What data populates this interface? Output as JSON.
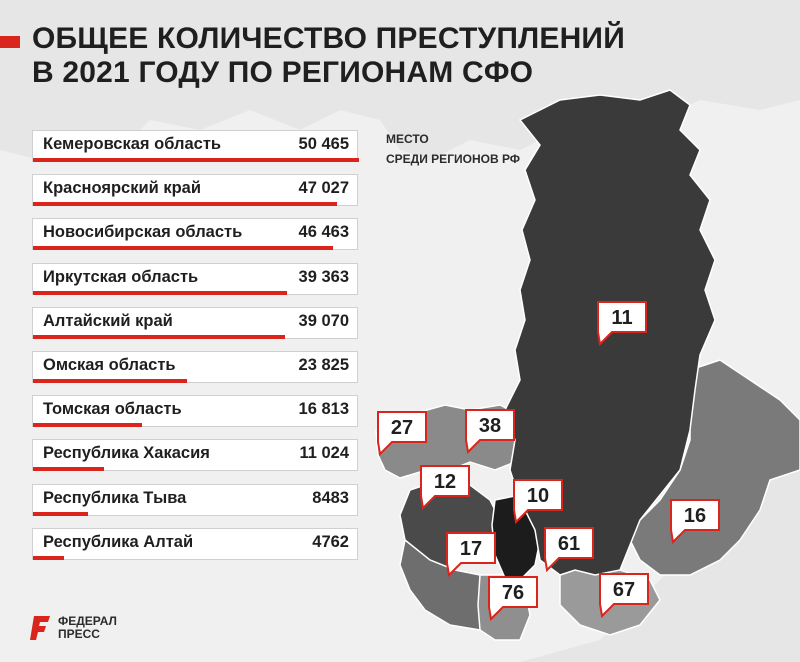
{
  "title_lines": [
    "ОБЩЕЕ КОЛИЧЕСТВО ПРЕСТУПЛЕНИЙ",
    "В 2021 ГОДУ ПО РЕГИОНАМ СФО"
  ],
  "rank_note_lines": [
    "МЕСТО",
    "СРЕДИ РЕГИОНОВ РФ"
  ],
  "logo_lines": [
    "ФЕДЕРАЛ",
    "ПРЕСС"
  ],
  "colors": {
    "accent": "#d9251c",
    "dark_region": "#3a3a3a",
    "mid_region": "#777777",
    "light_region": "#9a9a9a",
    "background": "#e6e6e6"
  },
  "chart_data": {
    "type": "bar",
    "orientation": "horizontal",
    "categories": [
      "Кемеровская область",
      "Красноярский край",
      "Новосибирская область",
      "Иркутская область",
      "Алтайский край",
      "Омская область",
      "Томская область",
      "Республика Хакасия",
      "Республика Тыва",
      "Республика Алтай"
    ],
    "values": [
      50465,
      47027,
      46463,
      39363,
      39070,
      23825,
      16813,
      11024,
      8483,
      4762
    ],
    "value_labels": [
      "50 465",
      "47 027",
      "46 463",
      "39 363",
      "39 070",
      "23 825",
      "16 813",
      "11 024",
      "8483",
      "4762"
    ],
    "xlim": [
      0,
      50465
    ],
    "map_ranks": [
      "11",
      "27",
      "38",
      "12",
      "10",
      "16",
      "17",
      "61",
      "76",
      "67"
    ]
  }
}
